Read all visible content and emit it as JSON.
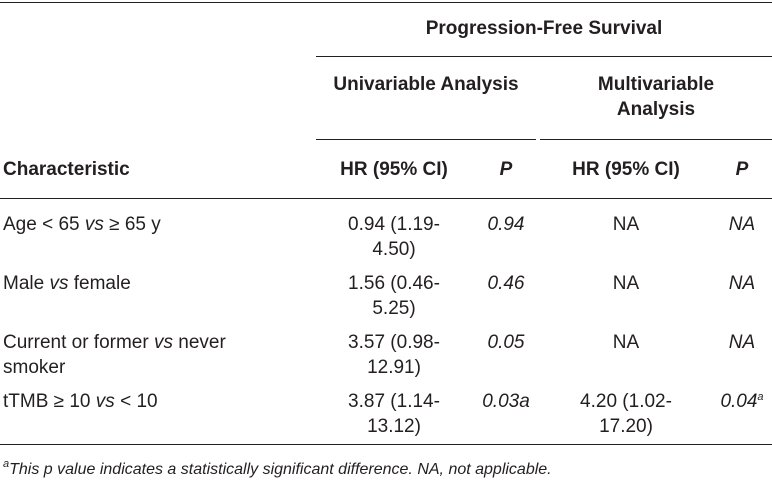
{
  "table": {
    "group_header": "Progression-Free Survival",
    "subheaders": {
      "univariable": "Univariable Analysis",
      "multivariable_line1": "Multivariable",
      "multivariable_line2": "Analysis"
    },
    "columns": {
      "characteristic": "Characteristic",
      "hr_uni": "HR (95% CI)",
      "p_uni": "P",
      "hr_multi": "HR (95% CI)",
      "p_multi": "P"
    },
    "rows": [
      {
        "char_a": "Age < 65 ",
        "char_vs": "vs",
        "char_b": " ≥ 65 y",
        "hr_uni_l1": "0.94 (1.19-",
        "hr_uni_l2": "4.50)",
        "p_uni": "0.94",
        "hr_multi": "NA",
        "p_multi": "NA"
      },
      {
        "char_a": "Male ",
        "char_vs": "vs",
        "char_b": " female",
        "hr_uni_l1": "1.56 (0.46-",
        "hr_uni_l2": "5.25)",
        "p_uni": "0.46",
        "hr_multi": "NA",
        "p_multi": "NA"
      },
      {
        "char_a": "Current or former ",
        "char_vs": "vs",
        "char_b": " never",
        "char_line2": "smoker",
        "hr_uni_l1": "3.57 (0.98-",
        "hr_uni_l2": "12.91)",
        "p_uni": "0.05",
        "hr_multi": "NA",
        "p_multi": "NA"
      },
      {
        "char_a": "tTMB ≥ 10 ",
        "char_vs": "vs",
        "char_b": " < 10",
        "hr_uni_l1": "3.87 (1.14-",
        "hr_uni_l2": "13.12)",
        "p_uni": "0.03a",
        "hr_multi_l1": "4.20 (1.02-",
        "hr_multi_l2": "17.20)",
        "p_multi": "0.04",
        "p_multi_sup": "a"
      }
    ],
    "footnote": {
      "marker": "a",
      "text": "This p value indicates a statistically significant difference. NA, not applicable."
    }
  }
}
